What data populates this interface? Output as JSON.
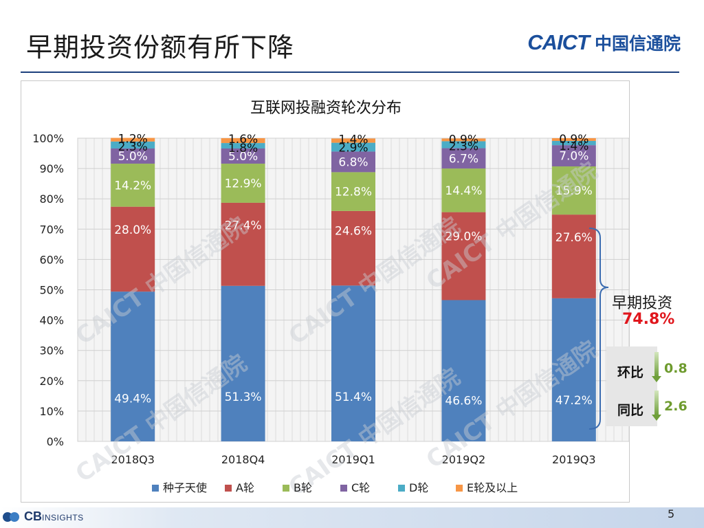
{
  "slide": {
    "title": "早期投资份额有所下降",
    "page": "5"
  },
  "logo": {
    "en": "CAICT",
    "cn": "中国信通院"
  },
  "watermark": "CAICT 中国信通院",
  "footer": {
    "brand": "CB",
    "brand_sub": "INSIGHTS"
  },
  "annotation": {
    "label": "早期投资",
    "value": "74.8%",
    "qoq_label": "环比",
    "qoq_value": "0.8",
    "yoy_label": "同比",
    "yoy_value": "2.6"
  },
  "colors": {
    "seed": "#4f81bd",
    "a": "#c0504d",
    "b": "#9bbb59",
    "c": "#8064a2",
    "d": "#4bacc6",
    "e": "#f79646"
  },
  "chart_data": {
    "type": "bar",
    "stacked": true,
    "title": "互联网投融资轮次分布",
    "categories": [
      "2018Q3",
      "2018Q4",
      "2019Q1",
      "2019Q2",
      "2019Q3"
    ],
    "series": [
      {
        "name": "种子天使",
        "values": [
          49.4,
          51.3,
          51.4,
          46.6,
          47.2
        ],
        "labels": [
          "49.4%",
          "51.3%",
          "51.4%",
          "46.6%",
          "47.2%"
        ]
      },
      {
        "name": "A轮",
        "values": [
          28.0,
          27.4,
          24.6,
          29.0,
          27.6
        ],
        "labels": [
          "28.0%",
          "27.4%",
          "24.6%",
          "29.0%",
          "27.6%"
        ]
      },
      {
        "name": "B轮",
        "values": [
          14.2,
          12.9,
          12.8,
          14.4,
          15.9
        ],
        "labels": [
          "14.2%",
          "12.9%",
          "12.8%",
          "14.4%",
          "15.9%"
        ]
      },
      {
        "name": "C轮",
        "values": [
          5.0,
          5.0,
          6.8,
          6.7,
          7.0
        ],
        "labels": [
          "5.0%",
          "5.0%",
          "6.8%",
          "6.7%",
          "7.0%"
        ]
      },
      {
        "name": "D轮",
        "values": [
          2.3,
          1.8,
          2.9,
          2.3,
          1.4
        ],
        "labels": [
          "2.3%",
          "1.8%",
          "2.9%",
          "2.3%",
          "1.4%"
        ]
      },
      {
        "name": "E轮及以上",
        "values": [
          1.2,
          1.6,
          1.4,
          0.9,
          0.9
        ],
        "labels": [
          "1.2%",
          "1.6%",
          "1.4%",
          "0.9%",
          "0.9%"
        ]
      }
    ],
    "ylim": [
      0,
      100
    ],
    "yticks": [
      "0%",
      "10%",
      "20%",
      "30%",
      "40%",
      "50%",
      "60%",
      "70%",
      "80%",
      "90%",
      "100%"
    ],
    "grid": true,
    "legend": "bottom"
  }
}
